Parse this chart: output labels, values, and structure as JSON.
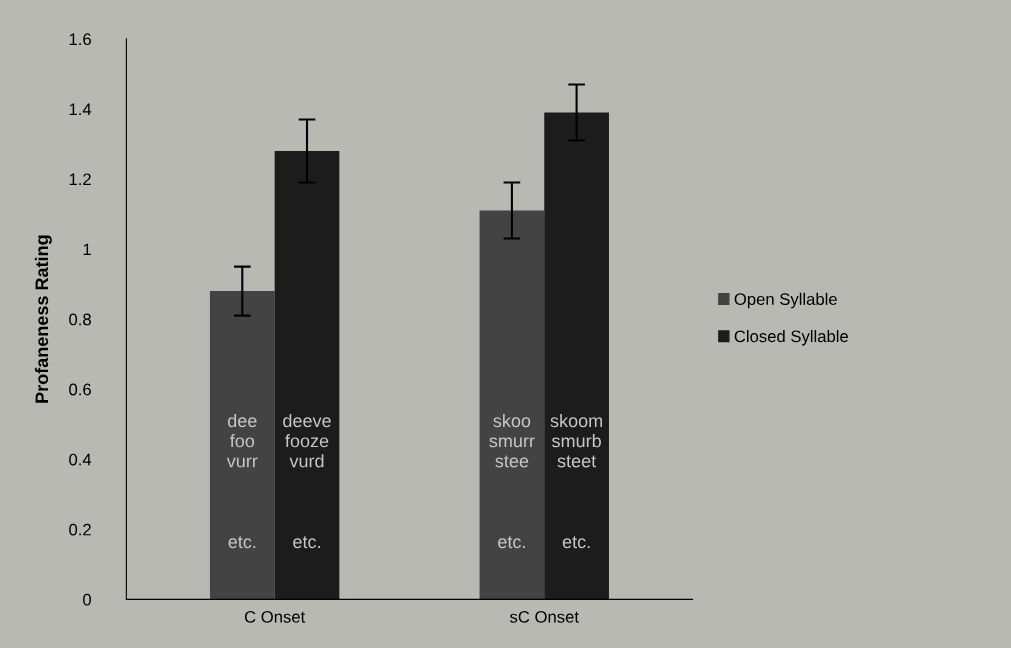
{
  "chart_data": {
    "type": "bar",
    "ylabel": "Profaneness Rating",
    "categories": [
      "C Onset",
      "sC Onset"
    ],
    "series": [
      {
        "name": "Open Syllable",
        "color": "#434343",
        "values": [
          0.88,
          1.11
        ],
        "errors": [
          0.07,
          0.08
        ]
      },
      {
        "name": "Closed Syllable",
        "color": "#1c1c1c",
        "values": [
          1.28,
          1.39
        ],
        "errors": [
          0.09,
          0.08
        ]
      }
    ],
    "ylim": [
      0,
      1.6
    ],
    "yticks": [
      0,
      0.2,
      0.4,
      0.6,
      0.8,
      1,
      1.2,
      1.4,
      1.6
    ],
    "annotations": [
      "dee\nfoo\nvurr",
      "etc.",
      "deeve\nfooze\nvurd",
      "etc.",
      "skoo\nsmurr\nstee",
      "etc.",
      "skoom\nsmurb\nsteet",
      "etc."
    ],
    "legend": "right",
    "grid": false
  }
}
